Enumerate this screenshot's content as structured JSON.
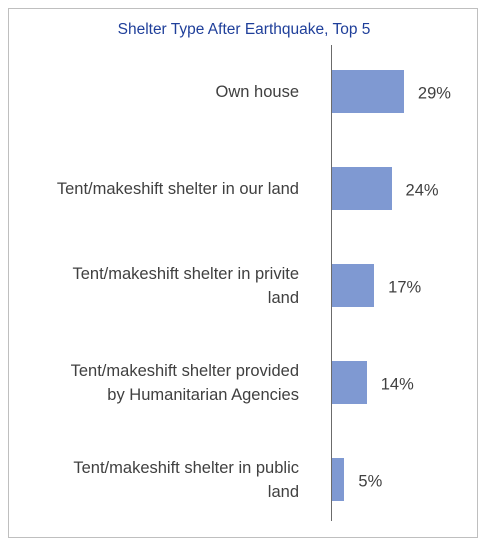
{
  "chart_data": {
    "type": "barh",
    "title": "Shelter Type After Earthquake, Top 5",
    "categories": [
      "Own house",
      "Tent/makeshift shelter in our land",
      "Tent/makeshift shelter in privite land",
      "Tent/makeshift shelter provided by Humanitarian Agencies",
      "Tent/makeshift shelter in public land"
    ],
    "values": [
      29,
      24,
      17,
      14,
      5
    ],
    "value_labels": [
      "29%",
      "24%",
      "17%",
      "14%",
      "5%"
    ],
    "color": "#7f99d2"
  }
}
